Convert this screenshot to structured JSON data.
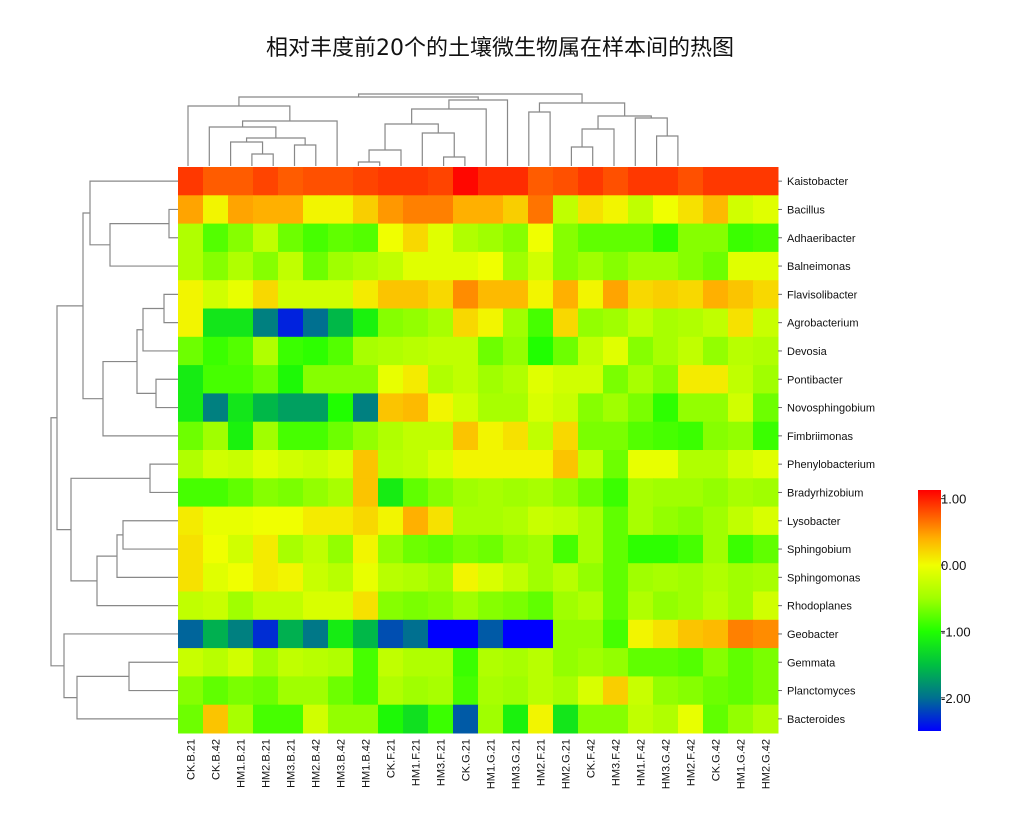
{
  "chart_data": {
    "type": "heatmap",
    "title": "相对丰度前20个的土壤微生物属在样本间的热图",
    "columns": [
      "CK.B.21",
      "CK.B.42",
      "HM1.B.21",
      "HM2.B.21",
      "HM3.B.21",
      "HM2.B.42",
      "HM3.B.42",
      "HM1.B.42",
      "CK.F.21",
      "HM1.F.21",
      "HM3.F.21",
      "CK.G.21",
      "HM1.G.21",
      "HM3.G.21",
      "HM2.F.21",
      "HM2.G.21",
      "CK.F.42",
      "HM3.F.42",
      "HM1.F.42",
      "HM3.G.42",
      "HM2.F.42",
      "CK.G.42",
      "HM1.G.42",
      "HM2.G.42"
    ],
    "rows": [
      "Kaistobacter",
      "Bacillus",
      "Adhaeribacter",
      "Balneimonas",
      "Flavisolibacter",
      "Agrobacterium",
      "Devosia",
      "Pontibacter",
      "Novosphingobium",
      "Fimbriimonas",
      "Phenylobacterium",
      "Bradyrhizobium",
      "Lysobacter",
      "Sphingobium",
      "Sphingomonas",
      "Rhodoplanes",
      "Geobacter",
      "Gemmata",
      "Planctomyces",
      "Bacteroides"
    ],
    "values": [
      [
        0.9,
        0.75,
        0.75,
        0.85,
        0.75,
        0.8,
        0.8,
        0.85,
        0.9,
        0.9,
        0.85,
        1.1,
        0.95,
        0.95,
        0.75,
        0.8,
        0.9,
        0.8,
        0.9,
        0.9,
        0.8,
        0.9,
        0.9,
        0.9
      ],
      [
        0.45,
        0.05,
        0.45,
        0.4,
        0.4,
        0.05,
        0.05,
        0.25,
        0.5,
        0.6,
        0.6,
        0.4,
        0.4,
        0.25,
        0.65,
        -0.3,
        0.15,
        0.05,
        -0.3,
        0.0,
        0.15,
        0.35,
        -0.2,
        -0.1
      ],
      [
        -0.4,
        -0.8,
        -0.6,
        -0.3,
        -0.7,
        -0.85,
        -0.75,
        -0.8,
        0.0,
        0.2,
        -0.1,
        -0.4,
        -0.5,
        -0.6,
        0.0,
        -0.6,
        -0.75,
        -0.75,
        -0.75,
        -0.95,
        -0.6,
        -0.6,
        -0.9,
        -0.85
      ],
      [
        -0.4,
        -0.6,
        -0.4,
        -0.6,
        -0.3,
        -0.7,
        -0.5,
        -0.4,
        -0.3,
        -0.1,
        -0.1,
        -0.1,
        0.0,
        -0.5,
        -0.2,
        -0.6,
        -0.5,
        -0.6,
        -0.5,
        -0.5,
        -0.6,
        -0.7,
        -0.1,
        -0.1
      ],
      [
        0.05,
        -0.2,
        -0.05,
        0.2,
        -0.2,
        -0.2,
        -0.2,
        0.1,
        0.3,
        0.3,
        0.2,
        0.55,
        0.35,
        0.35,
        0.05,
        0.4,
        0.05,
        0.45,
        0.2,
        0.25,
        0.2,
        0.4,
        0.3,
        0.2
      ],
      [
        0.05,
        -1.2,
        -1.2,
        -1.9,
        -2.35,
        -2.0,
        -1.55,
        -1.1,
        -0.6,
        -0.55,
        -0.45,
        0.2,
        0.05,
        -0.5,
        -0.85,
        0.2,
        -0.55,
        -0.5,
        -0.3,
        -0.45,
        -0.4,
        -0.3,
        0.15,
        -0.25
      ],
      [
        -0.7,
        -0.9,
        -0.8,
        -0.4,
        -0.9,
        -0.95,
        -0.8,
        -0.45,
        -0.4,
        -0.35,
        -0.3,
        -0.3,
        -0.7,
        -0.55,
        -1.0,
        -0.7,
        -0.3,
        -0.1,
        -0.6,
        -0.45,
        -0.3,
        -0.55,
        -0.35,
        -0.4
      ],
      [
        -1.15,
        -0.85,
        -0.85,
        -0.7,
        -1.05,
        -0.6,
        -0.6,
        -0.6,
        -0.05,
        0.1,
        -0.4,
        -0.3,
        -0.5,
        -0.4,
        -0.1,
        -0.2,
        -0.2,
        -0.65,
        -0.45,
        -0.6,
        0.1,
        0.1,
        -0.3,
        -0.5
      ],
      [
        -1.15,
        -1.9,
        -1.2,
        -1.55,
        -1.7,
        -1.7,
        -1.0,
        -1.9,
        0.3,
        0.35,
        0.05,
        -0.2,
        -0.45,
        -0.45,
        -0.15,
        -0.25,
        -0.6,
        -0.5,
        -0.65,
        -0.95,
        -0.55,
        -0.55,
        -0.2,
        -0.7
      ],
      [
        -0.7,
        -0.5,
        -1.1,
        -0.5,
        -0.85,
        -0.85,
        -0.7,
        -0.55,
        -0.4,
        -0.3,
        -0.3,
        0.3,
        0.05,
        0.15,
        -0.3,
        0.2,
        -0.65,
        -0.65,
        -0.8,
        -0.85,
        -0.9,
        -0.6,
        -0.55,
        -0.9
      ],
      [
        -0.4,
        -0.2,
        -0.25,
        -0.1,
        -0.2,
        -0.25,
        -0.15,
        0.3,
        -0.35,
        -0.3,
        -0.15,
        0.05,
        0.05,
        0.05,
        0.05,
        0.3,
        -0.3,
        -0.7,
        -0.05,
        -0.05,
        -0.4,
        -0.4,
        -0.2,
        -0.1
      ],
      [
        -0.85,
        -0.85,
        -0.75,
        -0.6,
        -0.65,
        -0.55,
        -0.45,
        0.3,
        -1.15,
        -0.75,
        -0.6,
        -0.5,
        -0.45,
        -0.5,
        -0.45,
        -0.55,
        -0.7,
        -0.9,
        -0.45,
        -0.5,
        -0.5,
        -0.55,
        -0.45,
        -0.5
      ],
      [
        0.1,
        -0.05,
        -0.05,
        0.0,
        0.0,
        0.1,
        0.1,
        0.2,
        0.05,
        0.4,
        0.15,
        -0.45,
        -0.45,
        -0.4,
        -0.25,
        -0.3,
        -0.45,
        -0.75,
        -0.45,
        -0.55,
        -0.6,
        -0.5,
        -0.3,
        -0.15
      ],
      [
        0.15,
        0.0,
        -0.2,
        0.1,
        -0.45,
        -0.3,
        -0.55,
        0.05,
        -0.55,
        -0.7,
        -0.75,
        -0.65,
        -0.7,
        -0.55,
        -0.5,
        -0.85,
        -0.45,
        -0.75,
        -0.95,
        -0.95,
        -0.85,
        -0.5,
        -0.9,
        -0.75
      ],
      [
        0.15,
        -0.1,
        0.0,
        0.1,
        0.05,
        -0.25,
        -0.35,
        -0.05,
        -0.35,
        -0.4,
        -0.5,
        0.05,
        -0.15,
        -0.3,
        -0.5,
        -0.35,
        -0.55,
        -0.75,
        -0.5,
        -0.45,
        -0.5,
        -0.4,
        -0.5,
        -0.45
      ],
      [
        -0.3,
        -0.25,
        -0.5,
        -0.3,
        -0.3,
        -0.15,
        -0.15,
        0.15,
        -0.6,
        -0.65,
        -0.6,
        -0.5,
        -0.6,
        -0.65,
        -0.75,
        -0.5,
        -0.4,
        -0.75,
        -0.4,
        -0.55,
        -0.5,
        -0.35,
        -0.5,
        -0.2
      ],
      [
        -2.05,
        -1.6,
        -1.9,
        -2.3,
        -1.6,
        -1.95,
        -1.15,
        -1.55,
        -2.15,
        -2.0,
        -2.5,
        -2.5,
        -2.1,
        -2.5,
        -2.5,
        -0.55,
        -0.55,
        -0.85,
        0.05,
        0.15,
        0.3,
        0.35,
        0.6,
        0.55
      ],
      [
        -0.25,
        -0.35,
        -0.2,
        -0.5,
        -0.3,
        -0.35,
        -0.4,
        -0.85,
        -0.3,
        -0.4,
        -0.4,
        -0.9,
        -0.4,
        -0.45,
        -0.35,
        -0.55,
        -0.5,
        -0.55,
        -0.75,
        -0.75,
        -0.8,
        -0.6,
        -0.75,
        -0.65
      ],
      [
        -0.6,
        -0.75,
        -0.65,
        -0.7,
        -0.5,
        -0.5,
        -0.7,
        -0.85,
        -0.4,
        -0.5,
        -0.45,
        -0.85,
        -0.45,
        -0.5,
        -0.35,
        -0.45,
        -0.15,
        0.25,
        -0.25,
        -0.55,
        -0.6,
        -0.7,
        -0.75,
        -0.65
      ],
      [
        -0.7,
        0.3,
        -0.45,
        -0.85,
        -0.85,
        -0.2,
        -0.55,
        -0.55,
        -1.05,
        -1.25,
        -0.9,
        -2.1,
        -0.5,
        -1.1,
        0.05,
        -1.2,
        -0.6,
        -0.6,
        -0.3,
        -0.4,
        -0.05,
        -0.75,
        -0.55,
        -0.4
      ]
    ],
    "vmin": -2.5,
    "vmax": 1.13,
    "legend": {
      "placement": "right",
      "ticks": [
        1.0,
        0.0,
        -1.0,
        -2.0
      ],
      "tick_labels": [
        "1.00",
        "0.00",
        "-1.00",
        "-2.00"
      ]
    },
    "colormap": [
      {
        "v": -2.5,
        "c": "#0000ff"
      },
      {
        "v": -2.0,
        "c": "#007090"
      },
      {
        "v": -1.5,
        "c": "#00c040"
      },
      {
        "v": -1.0,
        "c": "#20ff00"
      },
      {
        "v": -0.5,
        "c": "#a0ff00"
      },
      {
        "v": 0.0,
        "c": "#f0ff00"
      },
      {
        "v": 0.4,
        "c": "#ffb000"
      },
      {
        "v": 0.8,
        "c": "#ff5000"
      },
      {
        "v": 1.13,
        "c": "#ff0000"
      }
    ],
    "row_dendrogram": true,
    "column_dendrogram": true,
    "grid": false
  }
}
